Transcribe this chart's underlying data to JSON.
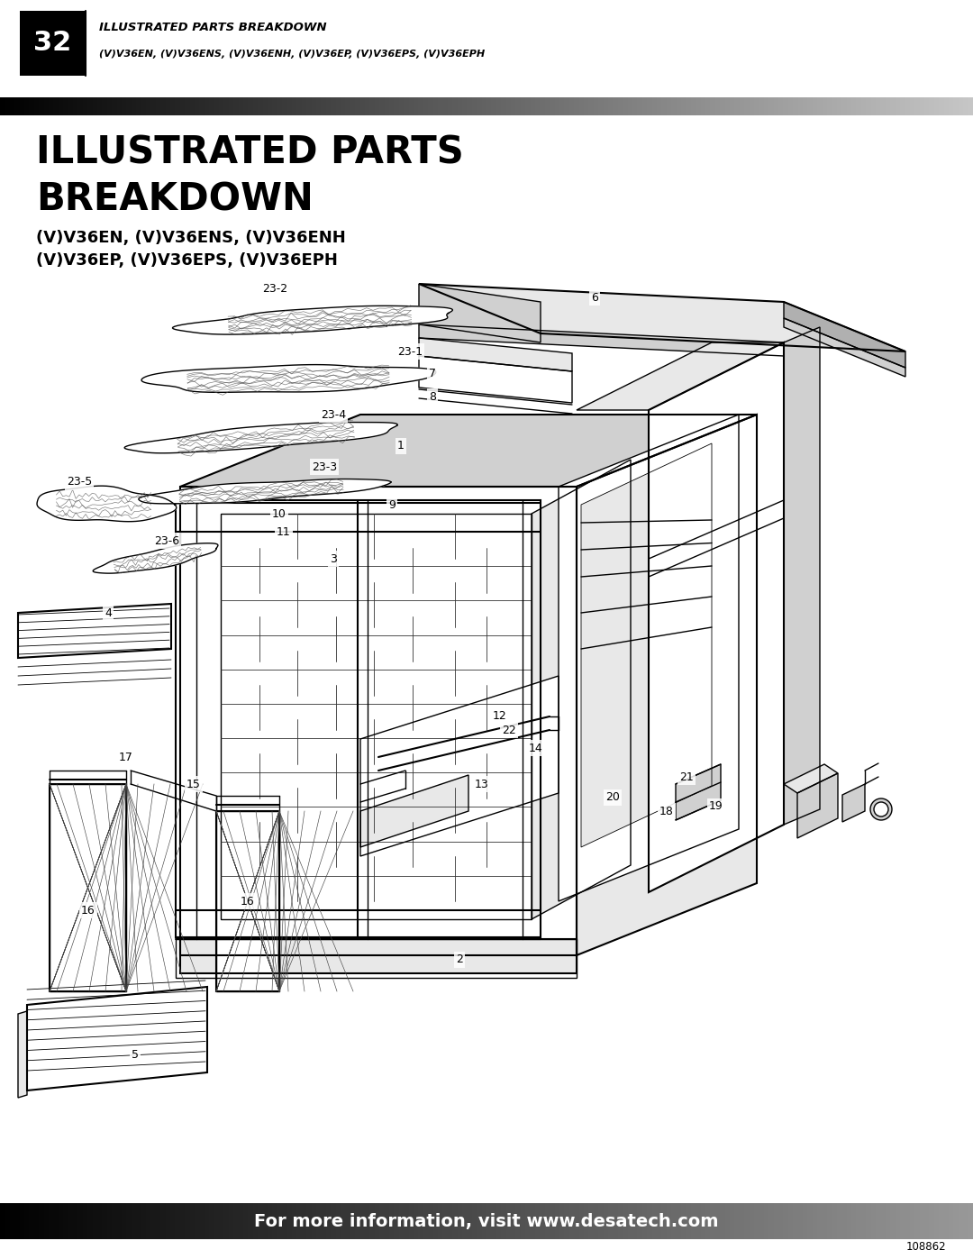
{
  "page_number": "32",
  "header_title": "ILLUSTRATED PARTS BREAKDOWN",
  "header_subtitle": "(V)V36EN, (V)V36ENS, (V)V36ENH, (V)V36EP, (V)V36EPS, (V)V36EPH",
  "main_title_line1": "ILLUSTRATED PARTS",
  "main_title_line2": "BREAKDOWN",
  "subtitle_line1": "(V)V36EN, (V)V36ENS, (V)V36ENH",
  "subtitle_line2": "(V)V36EP, (V)V36EPS, (V)V36EPH",
  "footer_text": "For more information, visit www.desatech.com",
  "doc_number": "108862",
  "bg_color": "#ffffff"
}
